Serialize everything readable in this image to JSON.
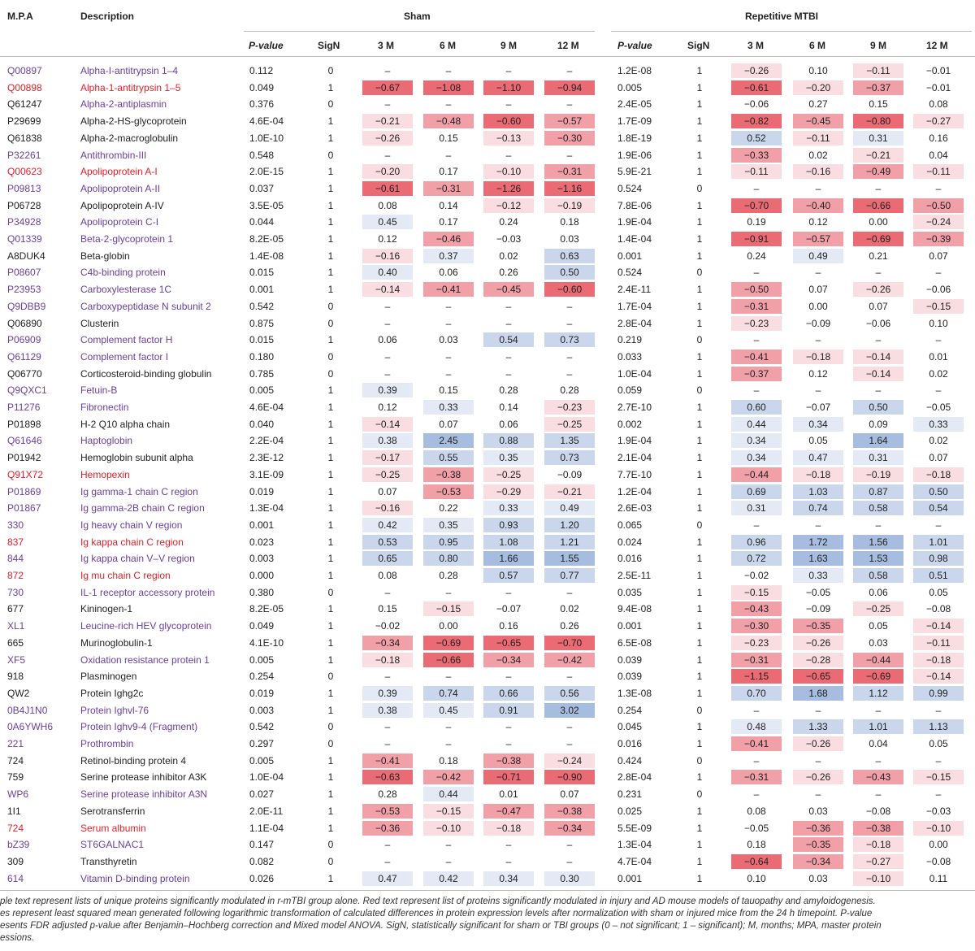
{
  "columns": {
    "mpa": "M.P.A",
    "description": "Description",
    "sham_group": "Sham",
    "tbi_group": "Repetitive MTBI",
    "pvalue": "P-value",
    "sign": "SigN",
    "t3": "3 M",
    "t6": "6 M",
    "t9": "9 M",
    "t12": "12 M"
  },
  "colors": {
    "purple": "#6a3fa0",
    "red": "#e0202a",
    "black": "#222222",
    "heat_red_strong": "#ea6b74",
    "heat_red_medium": "#f1a0a8",
    "heat_red_light": "#f9dde1",
    "heat_blue_strong": "#a7bde0",
    "heat_blue_medium": "#c9d6ec",
    "heat_blue_light": "#e3eaf5"
  },
  "rows": [
    {
      "acc": "Q00897",
      "desc": "Alpha-I-antitrypsin 1–4",
      "color": "purple",
      "sp": "0.112",
      "ss": "0",
      "sv": [
        "–",
        "–",
        "–",
        "–"
      ],
      "tp": "1.2E-08",
      "ts": "1",
      "tv": [
        "−0.26",
        "0.10",
        "−0.11",
        "−0.01"
      ]
    },
    {
      "acc": "Q00898",
      "desc": "Alpha-1-antitrypsin 1–5",
      "color": "red",
      "sp": "0.049",
      "ss": "1",
      "sv": [
        "−0.67",
        "−1.08",
        "−1.10",
        "−0.94"
      ],
      "tp": "0.005",
      "ts": "1",
      "tv": [
        "−0.61",
        "−0.20",
        "−0.37",
        "−0.01"
      ]
    },
    {
      "acc": "Q61247",
      "desc": "Alpha-2-antiplasmin",
      "color": "purple",
      "accColor": "black",
      "sp": "0.376",
      "ss": "0",
      "sv": [
        "–",
        "–",
        "–",
        "–"
      ],
      "tp": "2.4E-05",
      "ts": "1",
      "tv": [
        "−0.06",
        "0.27",
        "0.15",
        "0.08"
      ]
    },
    {
      "acc": "P29699",
      "desc": "Alpha-2-HS-glycoprotein",
      "color": "black",
      "sp": "4.6E-04",
      "ss": "1",
      "sv": [
        "−0.21",
        "−0.48",
        "−0.60",
        "−0.57"
      ],
      "tp": "1.7E-09",
      "ts": "1",
      "tv": [
        "−0.82",
        "−0.45",
        "−0.80",
        "−0.27"
      ]
    },
    {
      "acc": "Q61838",
      "desc": "Alpha-2-macroglobulin",
      "color": "black",
      "sp": "1.0E-10",
      "ss": "1",
      "sv": [
        "−0.26",
        "0.15",
        "−0.13",
        "−0.30"
      ],
      "tp": "1.8E-19",
      "ts": "1",
      "tv": [
        "0.52",
        "−0.11",
        "0.31",
        "0.16"
      ]
    },
    {
      "acc": "P32261",
      "desc": "Antithrombin-III",
      "color": "purple",
      "sp": "0.548",
      "ss": "0",
      "sv": [
        "–",
        "–",
        "–",
        "–"
      ],
      "tp": "1.9E-06",
      "ts": "1",
      "tv": [
        "−0.33",
        "0.02",
        "−0.21",
        "0.04"
      ]
    },
    {
      "acc": "Q00623",
      "desc": "Apolipoprotein A-I",
      "color": "red",
      "sp": "2.0E-15",
      "ss": "1",
      "sv": [
        "−0.20",
        "0.17",
        "−0.10",
        "−0.31"
      ],
      "tp": "5.9E-21",
      "ts": "1",
      "tv": [
        "−0.11",
        "−0.16",
        "−0.49",
        "−0.11"
      ]
    },
    {
      "acc": "P09813",
      "desc": "Apolipoprotein A-II",
      "color": "purple",
      "sp": "0.037",
      "ss": "1",
      "sv": [
        "−0.61",
        "−0.31",
        "−1.26",
        "−1.16"
      ],
      "tp": "0.524",
      "ts": "0",
      "tv": [
        "–",
        "–",
        "–",
        "–"
      ]
    },
    {
      "acc": "P06728",
      "desc": "Apolipoprotein A-IV",
      "color": "black",
      "sp": "3.5E-05",
      "ss": "1",
      "sv": [
        "0.08",
        "0.14",
        "−0.12",
        "−0.19"
      ],
      "tp": "7.8E-06",
      "ts": "1",
      "tv": [
        "−0.70",
        "−0.40",
        "−0.66",
        "−0.50"
      ]
    },
    {
      "acc": "P34928",
      "desc": "Apolipoprotein C-I",
      "color": "purple",
      "sp": "0.044",
      "ss": "1",
      "sv": [
        "0.45",
        "0.17",
        "0.24",
        "0.18"
      ],
      "tp": "1.9E-04",
      "ts": "1",
      "tv": [
        "0.19",
        "0.12",
        "0.00",
        "−0.24"
      ]
    },
    {
      "acc": "Q01339",
      "desc": "Beta-2-glycoprotein 1",
      "color": "purple",
      "sp": "8.2E-05",
      "ss": "1",
      "sv": [
        "0.12",
        "−0.46",
        "−0.03",
        "0.03"
      ],
      "tp": "1.4E-04",
      "ts": "1",
      "tv": [
        "−0.91",
        "−0.57",
        "−0.69",
        "−0.39"
      ]
    },
    {
      "acc": "A8DUK4",
      "desc": "Beta-globin",
      "color": "black",
      "sp": "1.4E-08",
      "ss": "1",
      "sv": [
        "−0.16",
        "0.37",
        "0.02",
        "0.63"
      ],
      "tp": "0.001",
      "ts": "1",
      "tv": [
        "0.24",
        "0.49",
        "0.21",
        "0.07"
      ]
    },
    {
      "acc": "P08607",
      "desc": "C4b-binding protein",
      "color": "purple",
      "sp": "0.015",
      "ss": "1",
      "sv": [
        "0.40",
        "0.06",
        "0.26",
        "0.50"
      ],
      "tp": "0.524",
      "ts": "0",
      "tv": [
        "–",
        "–",
        "–",
        "–"
      ]
    },
    {
      "acc": "P23953",
      "desc": "Carboxylesterase 1C",
      "color": "purple",
      "sp": "0.001",
      "ss": "1",
      "sv": [
        "−0.14",
        "−0.41",
        "−0.45",
        "−0.60"
      ],
      "tp": "2.4E-11",
      "ts": "1",
      "tv": [
        "−0.50",
        "0.07",
        "−0.26",
        "−0.06"
      ]
    },
    {
      "acc": "Q9DBB9",
      "desc": "Carboxypeptidase N subunit 2",
      "color": "purple",
      "sp": "0.542",
      "ss": "0",
      "sv": [
        "–",
        "–",
        "–",
        "–"
      ],
      "tp": "1.7E-04",
      "ts": "1",
      "tv": [
        "−0.31",
        "0.00",
        "0.07",
        "−0.15"
      ]
    },
    {
      "acc": "Q06890",
      "desc": "Clusterin",
      "color": "black",
      "sp": "0.875",
      "ss": "0",
      "sv": [
        "–",
        "–",
        "–",
        "–"
      ],
      "tp": "2.8E-04",
      "ts": "1",
      "tv": [
        "−0.23",
        "−0.09",
        "−0.06",
        "0.10"
      ]
    },
    {
      "acc": "P06909",
      "desc": "Complement factor H",
      "color": "purple",
      "sp": "0.015",
      "ss": "1",
      "sv": [
        "0.06",
        "0.03",
        "0.54",
        "0.73"
      ],
      "tp": "0.219",
      "ts": "0",
      "tv": [
        "–",
        "–",
        "–",
        "–"
      ]
    },
    {
      "acc": "Q61129",
      "desc": "Complement factor I",
      "color": "purple",
      "sp": "0.180",
      "ss": "0",
      "sv": [
        "–",
        "–",
        "–",
        "–"
      ],
      "tp": "0.033",
      "ts": "1",
      "tv": [
        "−0.41",
        "−0.18",
        "−0.14",
        "0.01"
      ]
    },
    {
      "acc": "Q06770",
      "desc": "Corticosteroid-binding globulin",
      "color": "black",
      "sp": "0.785",
      "ss": "0",
      "sv": [
        "–",
        "–",
        "–",
        "–"
      ],
      "tp": "1.0E-04",
      "ts": "1",
      "tv": [
        "−0.37",
        "0.12",
        "−0.14",
        "0.02"
      ]
    },
    {
      "acc": "Q9QXC1",
      "desc": "Fetuin-B",
      "color": "purple",
      "sp": "0.005",
      "ss": "1",
      "sv": [
        "0.39",
        "0.15",
        "0.28",
        "0.28"
      ],
      "tp": "0.059",
      "ts": "0",
      "tv": [
        "–",
        "–",
        "–",
        "–"
      ]
    },
    {
      "acc": "P11276",
      "desc": "Fibronectin",
      "color": "purple",
      "sp": "4.6E-04",
      "ss": "1",
      "sv": [
        "0.12",
        "0.33",
        "0.14",
        "−0.23"
      ],
      "tp": "2.7E-10",
      "ts": "1",
      "tv": [
        "0.60",
        "−0.07",
        "0.50",
        "−0.05"
      ]
    },
    {
      "acc": "P01898",
      "desc": "H-2 Q10 alpha chain",
      "color": "black",
      "sp": "0.040",
      "ss": "1",
      "sv": [
        "−0.14",
        "0.07",
        "0.06",
        "−0.25"
      ],
      "tp": "0.002",
      "ts": "1",
      "tv": [
        "0.44",
        "0.34",
        "0.09",
        "0.33"
      ]
    },
    {
      "acc": "Q61646",
      "desc": "Haptoglobin",
      "color": "purple",
      "sp": "2.2E-04",
      "ss": "1",
      "sv": [
        "0.38",
        "2.45",
        "0.88",
        "1.35"
      ],
      "tp": "1.9E-04",
      "ts": "1",
      "tv": [
        "0.34",
        "0.05",
        "1.64",
        "0.02"
      ]
    },
    {
      "acc": "P01942",
      "desc": "Hemoglobin subunit alpha",
      "color": "black",
      "sp": "2.3E-12",
      "ss": "1",
      "sv": [
        "−0.17",
        "0.55",
        "0.35",
        "0.73"
      ],
      "tp": "2.1E-04",
      "ts": "1",
      "tv": [
        "0.34",
        "0.47",
        "0.31",
        "0.07"
      ]
    },
    {
      "acc": "Q91X72",
      "desc": "Hemopexin",
      "color": "red",
      "sp": "3.1E-09",
      "ss": "1",
      "sv": [
        "−0.25",
        "−0.38",
        "−0.25",
        "−0.09"
      ],
      "tp": "7.7E-10",
      "ts": "1",
      "tv": [
        "−0.44",
        "−0.18",
        "−0.19",
        "−0.18"
      ]
    },
    {
      "acc": "P01869",
      "desc": "Ig gamma-1 chain C region",
      "color": "purple",
      "sp": "0.019",
      "ss": "1",
      "sv": [
        "0.07",
        "−0.53",
        "−0.29",
        "−0.21"
      ],
      "tp": "1.2E-04",
      "ts": "1",
      "tv": [
        "0.69",
        "1.03",
        "0.87",
        "0.50"
      ]
    },
    {
      "acc": "P01867",
      "desc": "Ig gamma-2B chain C region",
      "color": "purple",
      "sp": "1.3E-04",
      "ss": "1",
      "sv": [
        "−0.16",
        "0.22",
        "0.33",
        "0.49"
      ],
      "tp": "2.6E-03",
      "ts": "1",
      "tv": [
        "0.31",
        "0.74",
        "0.58",
        "0.54"
      ]
    },
    {
      "acc": "330",
      "desc": "Ig heavy chain V region",
      "color": "purple",
      "sp": "0.001",
      "ss": "1",
      "sv": [
        "0.42",
        "0.35",
        "0.93",
        "1.20"
      ],
      "tp": "0.065",
      "ts": "0",
      "tv": [
        "–",
        "–",
        "–",
        "–"
      ]
    },
    {
      "acc": "837",
      "desc": "Ig kappa chain C region",
      "color": "red",
      "sp": "0.023",
      "ss": "1",
      "sv": [
        "0.53",
        "0.95",
        "1.08",
        "1.21"
      ],
      "tp": "0.024",
      "ts": "1",
      "tv": [
        "0.96",
        "1.72",
        "1.56",
        "1.01"
      ]
    },
    {
      "acc": "844",
      "desc": "Ig kappa chain V–V region",
      "color": "purple",
      "sp": "0.003",
      "ss": "1",
      "sv": [
        "0.65",
        "0.80",
        "1.66",
        "1.55"
      ],
      "tp": "0.016",
      "ts": "1",
      "tv": [
        "0.72",
        "1.63",
        "1.53",
        "0.98"
      ]
    },
    {
      "acc": "872",
      "desc": "Ig mu chain C region",
      "color": "red",
      "sp": "0.000",
      "ss": "1",
      "sv": [
        "0.08",
        "0.28",
        "0.57",
        "0.77"
      ],
      "tp": "2.5E-11",
      "ts": "1",
      "tv": [
        "−0.02",
        "0.33",
        "0.58",
        "0.51"
      ]
    },
    {
      "acc": "730",
      "desc": "IL-1 receptor accessory protein",
      "color": "purple",
      "sp": "0.380",
      "ss": "0",
      "sv": [
        "–",
        "–",
        "–",
        "–"
      ],
      "tp": "0.035",
      "ts": "1",
      "tv": [
        "−0.15",
        "−0.05",
        "0.06",
        "0.05"
      ]
    },
    {
      "acc": "677",
      "desc": "Kininogen-1",
      "color": "black",
      "sp": "8.2E-05",
      "ss": "1",
      "sv": [
        "0.15",
        "−0.15",
        "−0.07",
        "0.02"
      ],
      "tp": "9.4E-08",
      "ts": "1",
      "tv": [
        "−0.43",
        "−0.09",
        "−0.25",
        "−0.08"
      ]
    },
    {
      "acc": "XL1",
      "desc": "Leucine-rich HEV glycoprotein",
      "color": "purple",
      "sp": "0.049",
      "ss": "1",
      "sv": [
        "−0.02",
        "0.00",
        "0.16",
        "0.26"
      ],
      "tp": "0.001",
      "ts": "1",
      "tv": [
        "−0.30",
        "−0.35",
        "0.05",
        "−0.14"
      ]
    },
    {
      "acc": "665",
      "desc": "Murinoglobulin-1",
      "color": "black",
      "sp": "4.1E-10",
      "ss": "1",
      "sv": [
        "−0.34",
        "−0.69",
        "−0.65",
        "−0.70"
      ],
      "tp": "6.5E-08",
      "ts": "1",
      "tv": [
        "−0.23",
        "−0.26",
        "0.03",
        "−0.11"
      ]
    },
    {
      "acc": "XF5",
      "desc": "Oxidation resistance protein 1",
      "color": "purple",
      "sp": "0.005",
      "ss": "1",
      "sv": [
        "−0.18",
        "−0.66",
        "−0.34",
        "−0.42"
      ],
      "tp": "0.039",
      "ts": "1",
      "tv": [
        "−0.31",
        "−0.28",
        "−0.44",
        "−0.18"
      ]
    },
    {
      "acc": "918",
      "desc": "Plasminogen",
      "color": "black",
      "sp": "0.254",
      "ss": "0",
      "sv": [
        "–",
        "–",
        "–",
        "–"
      ],
      "tp": "0.039",
      "ts": "1",
      "tv": [
        "−1.15",
        "−0.65",
        "−0.69",
        "−0.14"
      ]
    },
    {
      "acc": "QW2",
      "desc": "Protein Ighg2c",
      "color": "black",
      "sp": "0.019",
      "ss": "1",
      "sv": [
        "0.39",
        "0.74",
        "0.66",
        "0.56"
      ],
      "tp": "1.3E-08",
      "ts": "1",
      "tv": [
        "0.70",
        "1.68",
        "1.12",
        "0.99"
      ]
    },
    {
      "acc": "0B4J1N0",
      "desc": "Protein Ighvl-76",
      "color": "purple",
      "sp": "0.003",
      "ss": "1",
      "sv": [
        "0.38",
        "0.45",
        "0.91",
        "3.02"
      ],
      "tp": "0.254",
      "ts": "0",
      "tv": [
        "–",
        "–",
        "–",
        "–"
      ]
    },
    {
      "acc": "0A6YWH6",
      "desc": "Protein Ighv9-4 (Fragment)",
      "color": "purple",
      "sp": "0.542",
      "ss": "0",
      "sv": [
        "–",
        "–",
        "–",
        "–"
      ],
      "tp": "0.045",
      "ts": "1",
      "tv": [
        "0.48",
        "1.33",
        "1.01",
        "1.13"
      ]
    },
    {
      "acc": "221",
      "desc": "Prothrombin",
      "color": "purple",
      "sp": "0.297",
      "ss": "0",
      "sv": [
        "–",
        "–",
        "–",
        "–"
      ],
      "tp": "0.016",
      "ts": "1",
      "tv": [
        "−0.41",
        "−0.26",
        "0.04",
        "0.05"
      ]
    },
    {
      "acc": "724",
      "desc": "Retinol-binding protein 4",
      "color": "black",
      "sp": "0.005",
      "ss": "1",
      "sv": [
        "−0.41",
        "0.18",
        "−0.38",
        "−0.24"
      ],
      "tp": "0.424",
      "ts": "0",
      "tv": [
        "–",
        "–",
        "–",
        "–"
      ]
    },
    {
      "acc": "759",
      "desc": "Serine protease inhibitor A3K",
      "color": "black",
      "sp": "1.0E-04",
      "ss": "1",
      "sv": [
        "−0.63",
        "−0.42",
        "−0.71",
        "−0.90"
      ],
      "tp": "2.8E-04",
      "ts": "1",
      "tv": [
        "−0.31",
        "−0.26",
        "−0.43",
        "−0.15"
      ]
    },
    {
      "acc": "WP6",
      "desc": "Serine protease inhibitor A3N",
      "color": "purple",
      "sp": "0.027",
      "ss": "1",
      "sv": [
        "0.28",
        "0.44",
        "0.01",
        "0.07"
      ],
      "tp": "0.231",
      "ts": "0",
      "tv": [
        "–",
        "–",
        "–",
        "–"
      ]
    },
    {
      "acc": "1I1",
      "desc": "Serotransferrin",
      "color": "black",
      "sp": "2.0E-11",
      "ss": "1",
      "sv": [
        "−0.53",
        "−0.15",
        "−0.47",
        "−0.38"
      ],
      "tp": "0.025",
      "ts": "1",
      "tv": [
        "0.08",
        "0.03",
        "−0.08",
        "−0.03"
      ]
    },
    {
      "acc": "724",
      "desc": "Serum albumin",
      "color": "red",
      "sp": "1.1E-04",
      "ss": "1",
      "sv": [
        "−0.36",
        "−0.10",
        "−0.18",
        "−0.34"
      ],
      "tp": "5.5E-09",
      "ts": "1",
      "tv": [
        "−0.05",
        "−0.36",
        "−0.38",
        "−0.10"
      ]
    },
    {
      "acc": "bZ39",
      "desc": "ST6GALNAC1",
      "color": "purple",
      "sp": "0.147",
      "ss": "0",
      "sv": [
        "–",
        "–",
        "–",
        "–"
      ],
      "tp": "1.3E-04",
      "ts": "1",
      "tv": [
        "0.18",
        "−0.35",
        "−0.18",
        "0.00"
      ]
    },
    {
      "acc": "309",
      "desc": "Transthyretin",
      "color": "black",
      "sp": "0.082",
      "ss": "0",
      "sv": [
        "–",
        "–",
        "–",
        "–"
      ],
      "tp": "4.7E-04",
      "ts": "1",
      "tv": [
        "−0.64",
        "−0.34",
        "−0.27",
        "−0.08"
      ]
    },
    {
      "acc": "614",
      "desc": "Vitamin D-binding protein",
      "color": "purple",
      "sp": "0.026",
      "ss": "1",
      "sv": [
        "0.47",
        "0.42",
        "0.34",
        "0.30"
      ],
      "tp": "0.001",
      "ts": "1",
      "tv": [
        "0.10",
        "0.03",
        "−0.10",
        "0.11"
      ]
    }
  ],
  "footnote": [
    "ple text represent lists of unique proteins significantly modulated in r-mTBI group alone. Red text represent list of proteins significantly modulated in injury and AD mouse models of tauopathy and amyloidogenesis.",
    "es represent least squared mean generated following logarithmic transformation of calculated differences in protein expression levels after normalization with sham or injured mice from the 24 h timepoint. P-value",
    "esents FDR adjusted p-value after Benjamin–Hochberg correction and Mixed model ANOVA. SigN, statistically significant for sham or TBI groups (0 – not significant; 1 – significant); M, months; MPA, master protein",
    "essions."
  ]
}
